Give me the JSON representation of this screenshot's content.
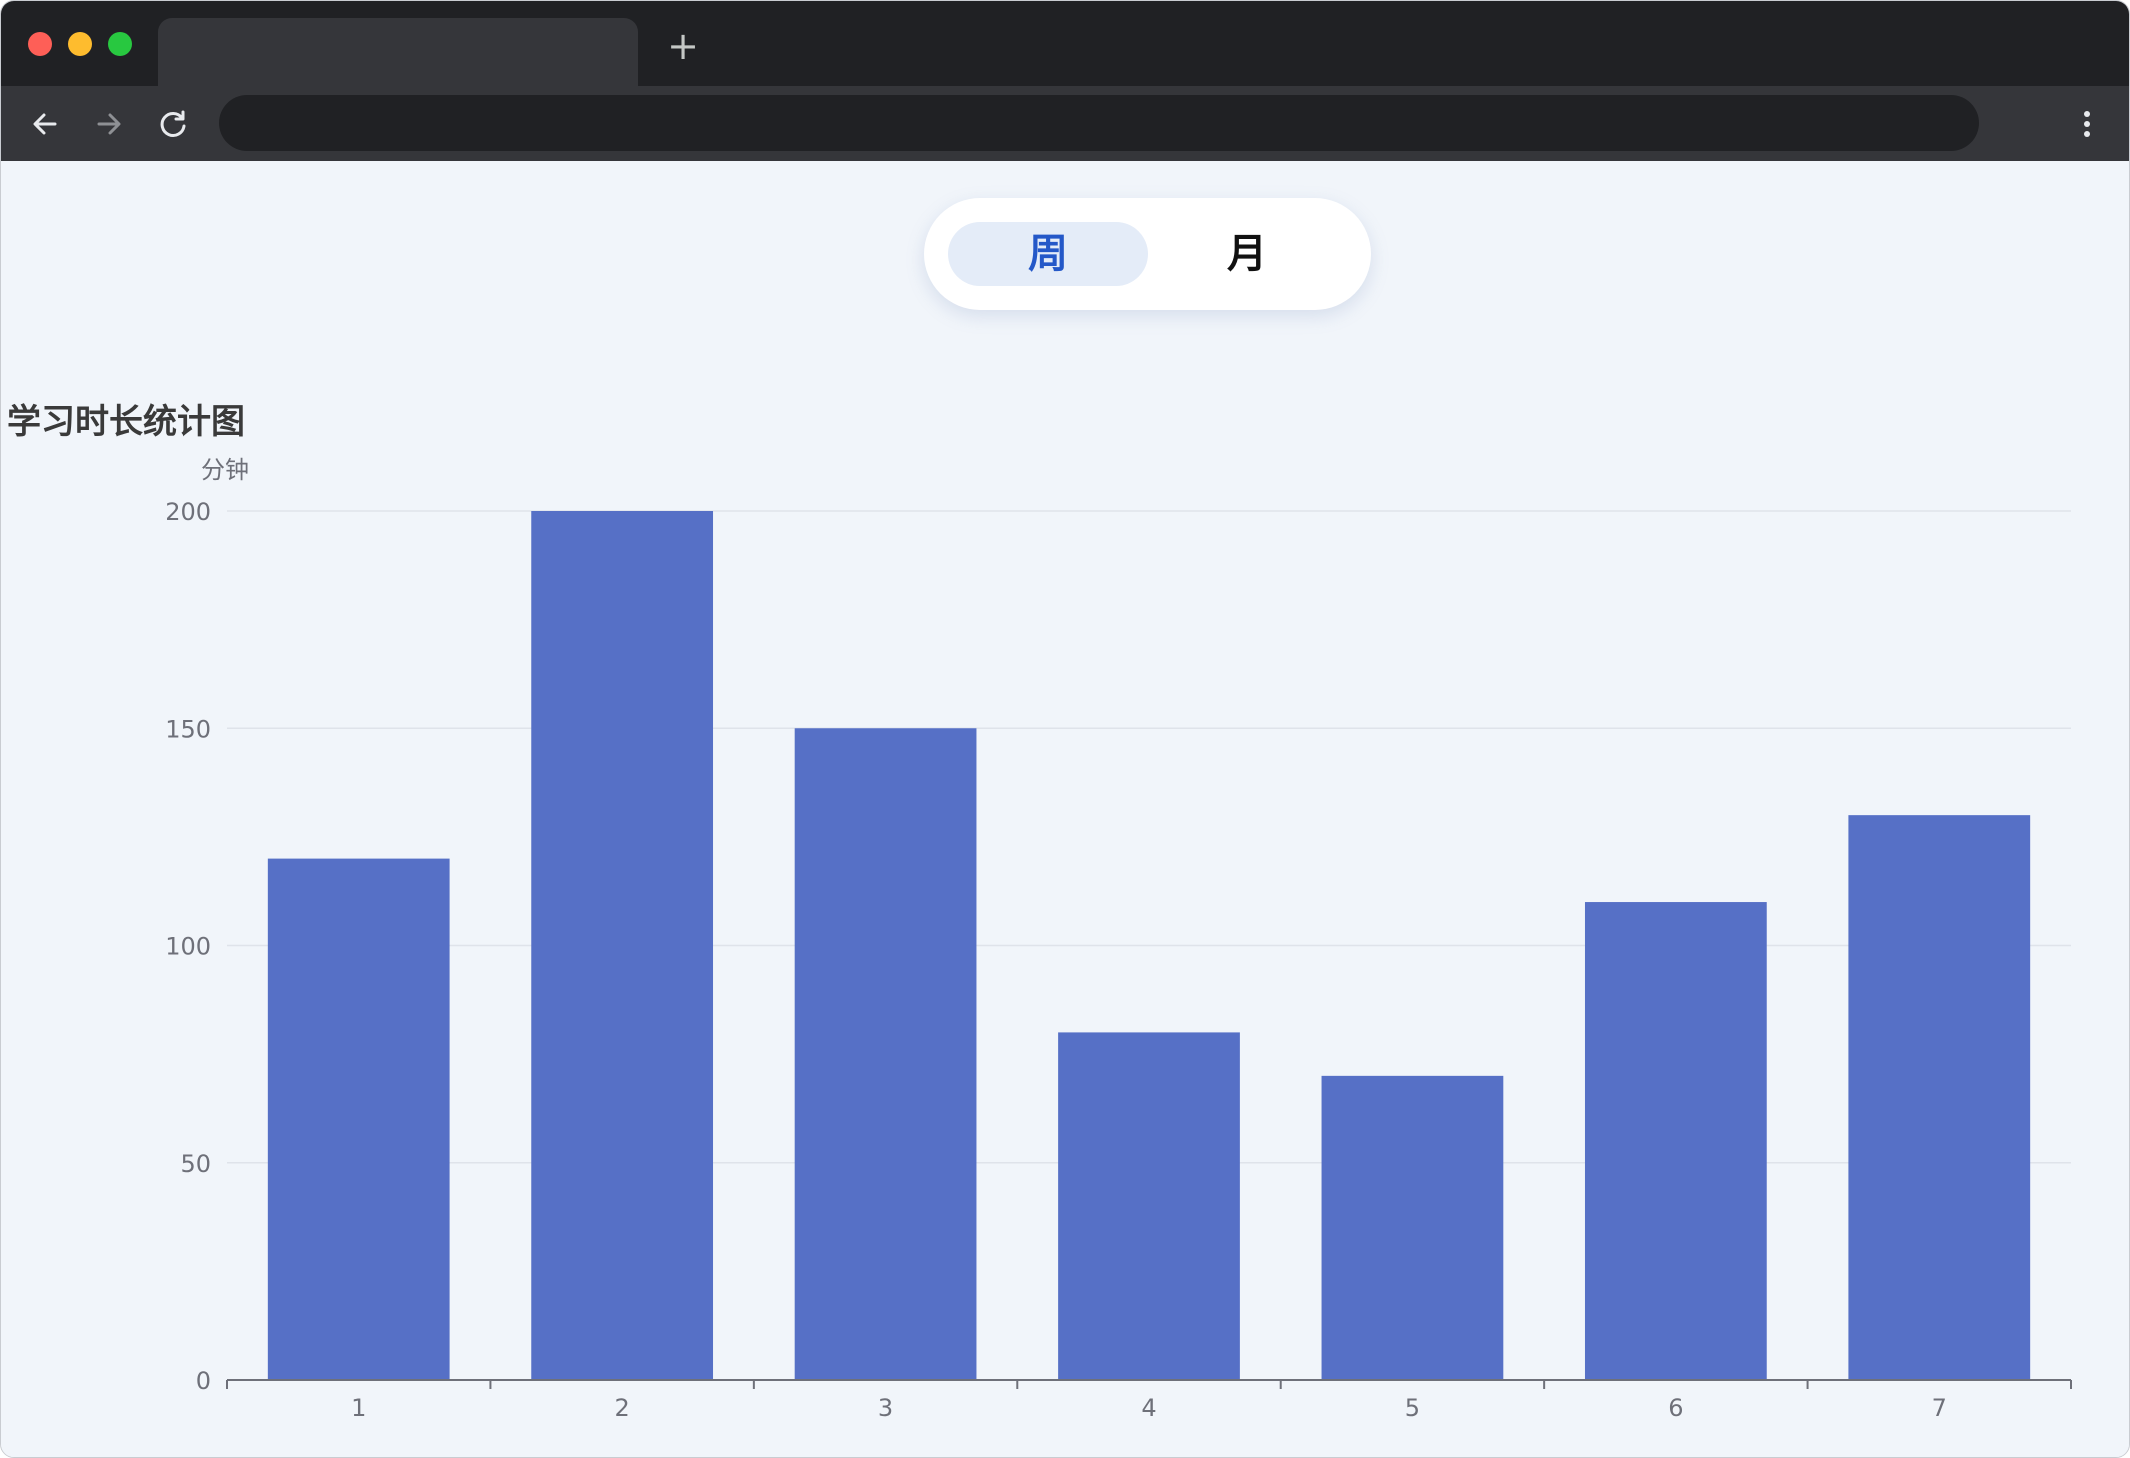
{
  "browser": {
    "new_tab_glyph": "+",
    "icons": [
      "back-arrow-icon",
      "forward-arrow-icon",
      "reload-icon",
      "kebab-menu-icon"
    ]
  },
  "switcher": {
    "week_label": "周",
    "month_label": "月",
    "selected": "周"
  },
  "colors": {
    "bar": "#5670c6",
    "grid": "#dfe3ea",
    "axis": "#6e7079",
    "background": "#f1f5fa",
    "accent": "#2458c8"
  },
  "chart_data": {
    "type": "bar",
    "title": "学习时长统计图",
    "xlabel": "",
    "ylabel": "分钟",
    "categories": [
      "1",
      "2",
      "3",
      "4",
      "5",
      "6",
      "7"
    ],
    "values": [
      120,
      200,
      150,
      80,
      70,
      110,
      130
    ],
    "ylim": [
      0,
      200
    ],
    "yticks": [
      0,
      50,
      100,
      150,
      200
    ],
    "grid": true
  }
}
